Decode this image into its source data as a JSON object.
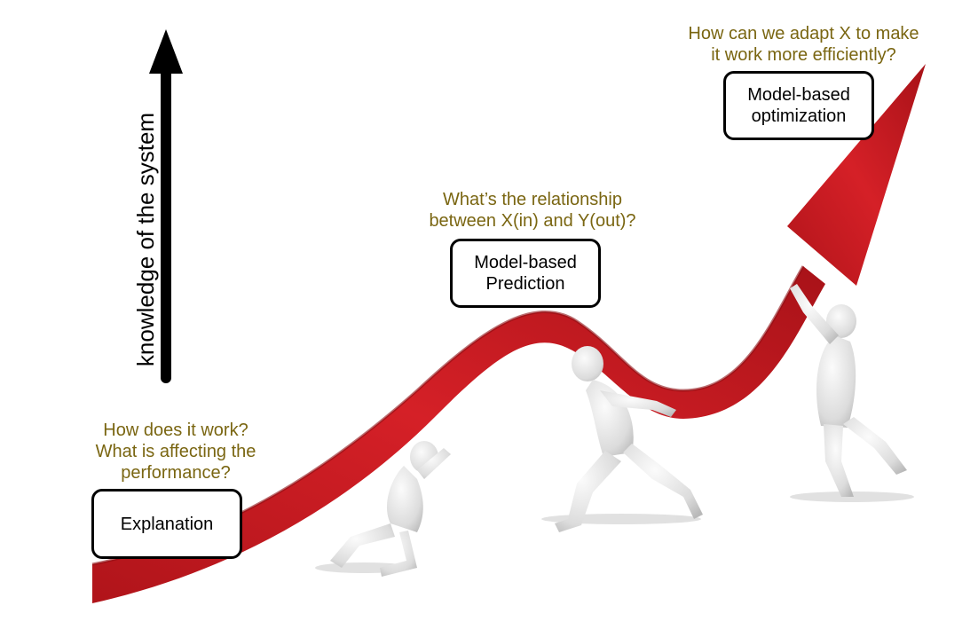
{
  "axis": {
    "label": "knowledge of the system"
  },
  "stages": [
    {
      "question_lines": [
        "How does it work?",
        "What is affecting the",
        "performance?"
      ],
      "box_lines": [
        "Explanation"
      ]
    },
    {
      "question_lines": [
        "What’s the relationship",
        "between X(in) and Y(out)?"
      ],
      "box_lines": [
        "Model-based",
        "Prediction"
      ]
    },
    {
      "question_lines": [
        "How can we adapt X to make",
        "it work more efficiently?"
      ],
      "box_lines": [
        "Model-based",
        "optimization"
      ]
    }
  ],
  "colors": {
    "question_text": "#7a6612",
    "trend_arrow": "#c8161c",
    "figures": "#e8e8e8"
  }
}
